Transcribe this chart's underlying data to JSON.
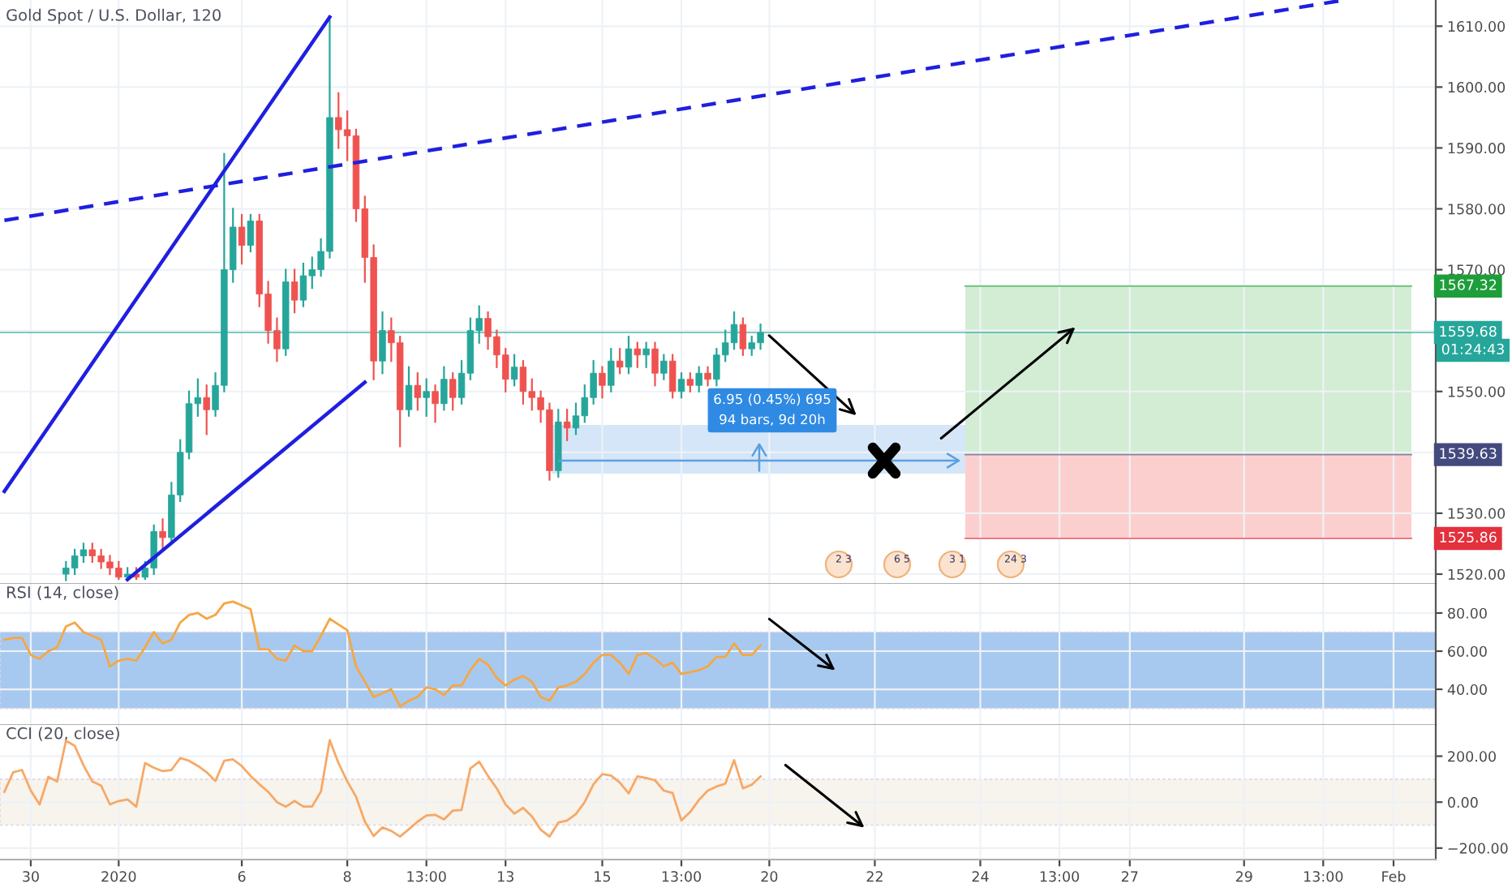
{
  "chart_data": [
    {
      "type": "candlestick",
      "title": "Gold Spot / U.S. Dollar, 120",
      "categories": [
        null,
        null,
        null,
        null,
        null,
        null,
        null,
        null,
        null,
        null,
        null,
        null,
        null,
        null,
        null,
        null,
        null,
        null,
        null,
        null,
        null,
        null,
        null,
        null,
        null,
        null,
        null,
        null,
        null,
        null,
        null,
        null,
        null,
        null,
        null,
        null,
        null,
        null,
        null,
        null,
        null,
        null,
        null,
        null,
        null,
        null,
        null,
        null,
        null,
        null,
        null,
        null,
        null,
        null,
        null,
        null,
        null,
        null,
        null,
        null,
        null,
        null,
        null,
        null,
        null,
        null,
        null,
        null,
        null,
        null,
        null,
        null,
        null,
        null,
        null,
        null,
        null,
        null,
        null,
        null,
        null,
        null,
        null,
        null,
        null,
        null,
        null,
        null,
        null,
        null,
        null,
        null,
        null,
        null,
        null,
        null,
        null,
        null,
        null,
        null,
        null,
        null,
        null,
        null,
        null,
        null,
        null,
        null,
        null,
        null,
        null,
        null,
        null,
        null,
        null,
        null,
        null,
        null,
        null,
        null,
        null,
        null,
        null,
        null,
        null,
        null,
        null,
        null,
        null,
        null,
        null,
        null,
        null,
        null,
        null,
        null,
        null,
        null,
        null,
        null,
        null,
        null,
        null,
        null,
        null,
        null,
        null,
        null,
        null,
        null,
        null,
        null,
        null,
        null,
        null,
        null,
        null,
        null,
        null,
        null,
        null,
        null,
        null,
        null
      ],
      "ohlc": [
        null,
        null,
        null,
        null,
        null,
        null,
        null,
        [
          1520,
          1522,
          1519,
          1521
        ],
        [
          1521,
          1524,
          1520,
          1523
        ],
        [
          1523,
          1525,
          1522,
          1524
        ],
        [
          1524,
          1525,
          1522,
          1523
        ],
        [
          1523,
          1524,
          1521,
          1522
        ],
        [
          1522,
          1523,
          1520,
          1521
        ],
        [
          1521,
          1522,
          1519.2,
          1519.5
        ],
        [
          1519.5,
          1521,
          1519.2,
          1520
        ],
        [
          1520,
          1521,
          1519.2,
          1519.5
        ],
        [
          1519.5,
          1522,
          1519.2,
          1521
        ],
        [
          1521,
          1528,
          1520,
          1527
        ],
        [
          1527,
          1529,
          1524,
          1526
        ],
        [
          1526,
          1535,
          1525,
          1533
        ],
        [
          1533,
          1542,
          1532,
          1540
        ],
        [
          1540,
          1550,
          1539,
          1548
        ],
        [
          1548,
          1552,
          1546,
          1549
        ],
        [
          1549,
          1551,
          1543,
          1547
        ],
        [
          1547,
          1553,
          1546,
          1551
        ],
        [
          1551,
          1589,
          1550,
          1570
        ],
        [
          1570,
          1580,
          1568,
          1577
        ],
        [
          1577,
          1579,
          1571,
          1574
        ],
        [
          1574,
          1579,
          1573,
          1578
        ],
        [
          1578,
          1579,
          1564,
          1566
        ],
        [
          1566,
          1568,
          1558,
          1560
        ],
        [
          1560,
          1562,
          1555,
          1557
        ],
        [
          1557,
          1570,
          1556,
          1568
        ],
        [
          1568,
          1570,
          1563,
          1565
        ],
        [
          1565,
          1571,
          1564,
          1569
        ],
        [
          1569,
          1572,
          1567,
          1570
        ],
        [
          1570,
          1575,
          1569,
          1573
        ],
        [
          1573,
          1611,
          1572,
          1595
        ],
        [
          1595,
          1599,
          1590,
          1593
        ],
        [
          1593,
          1596,
          1588,
          1592
        ],
        [
          1592,
          1593,
          1578,
          1580
        ],
        [
          1580,
          1582,
          1568,
          1572
        ],
        [
          1572,
          1574,
          1552,
          1555
        ],
        [
          1555,
          1563,
          1553,
          1560
        ],
        [
          1560,
          1562,
          1555,
          1558
        ],
        [
          1558,
          1559,
          1541,
          1547
        ],
        [
          1547,
          1554,
          1546,
          1551
        ],
        [
          1551,
          1553,
          1547,
          1549
        ],
        [
          1549,
          1552,
          1546,
          1550
        ],
        [
          1550,
          1551,
          1545,
          1548
        ],
        [
          1548,
          1554,
          1547,
          1552
        ],
        [
          1552,
          1553,
          1547,
          1549
        ],
        [
          1549,
          1555,
          1548,
          1553
        ],
        [
          1553,
          1562,
          1552,
          1560
        ],
        [
          1560,
          1564,
          1558,
          1562
        ],
        [
          1562,
          1563,
          1557,
          1559
        ],
        [
          1559,
          1560,
          1554,
          1556
        ],
        [
          1556,
          1557,
          1550,
          1552
        ],
        [
          1552,
          1556,
          1551,
          1554
        ],
        [
          1554,
          1555,
          1548,
          1550
        ],
        [
          1550,
          1552,
          1547,
          1549
        ],
        [
          1549,
          1550,
          1545,
          1547
        ],
        [
          1547,
          1548,
          1535.5,
          1537
        ],
        [
          1537,
          1547,
          1536,
          1545
        ],
        [
          1545,
          1547,
          1542,
          1544
        ],
        [
          1544,
          1548,
          1543,
          1546
        ],
        [
          1546,
          1551,
          1545,
          1549
        ],
        [
          1549,
          1555,
          1548,
          1553
        ],
        [
          1553,
          1554,
          1549,
          1551
        ],
        [
          1551,
          1557,
          1550,
          1555
        ],
        [
          1555,
          1557,
          1553,
          1554
        ],
        [
          1554,
          1559,
          1553,
          1557
        ],
        [
          1557,
          1558,
          1554,
          1556
        ],
        [
          1556,
          1558,
          1554,
          1557
        ],
        [
          1557,
          1558,
          1551,
          1553
        ],
        [
          1553,
          1556,
          1552,
          1555
        ],
        [
          1555,
          1556,
          1549,
          1550
        ],
        [
          1550,
          1553,
          1549,
          1552
        ],
        [
          1552,
          1553,
          1550,
          1551
        ],
        [
          1551,
          1554,
          1550,
          1553
        ],
        [
          1553,
          1554,
          1551,
          1552
        ],
        [
          1552,
          1557,
          1551,
          1556
        ],
        [
          1556,
          1560,
          1555,
          1558
        ],
        [
          1558,
          1563,
          1557,
          1561
        ],
        [
          1561,
          1562,
          1556,
          1557
        ],
        [
          1557,
          1559,
          1556,
          1558
        ],
        [
          1558,
          1561,
          1557,
          1559.68
        ],
        null,
        null,
        null,
        null,
        null,
        null,
        null,
        null,
        null,
        null,
        null,
        null,
        null,
        null,
        null,
        null,
        null,
        null,
        null,
        null,
        null,
        null,
        null,
        null,
        null,
        null,
        null,
        null,
        null,
        null,
        null,
        null,
        null,
        null,
        null,
        null,
        null,
        null,
        null,
        null,
        null,
        null,
        null,
        null,
        null,
        null,
        null,
        null,
        null,
        null,
        null,
        null,
        null,
        null,
        null,
        null,
        null,
        null,
        null,
        null,
        null,
        null,
        null,
        null,
        null,
        null,
        null,
        null,
        null,
        null,
        null,
        null,
        null,
        null,
        null,
        null,
        null
      ],
      "series": [
        {
          "type": "line",
          "color": "#1f1fe0",
          "line_style": "solid",
          "values": [
            1533.6,
            null,
            null,
            null,
            null,
            null,
            null,
            null,
            null,
            null,
            null,
            null,
            null,
            null,
            null,
            null,
            null,
            null,
            null,
            null,
            null,
            null,
            null,
            null,
            null,
            null,
            null,
            null,
            null,
            null,
            null,
            null,
            null,
            null,
            null,
            null,
            null,
            1611.5,
            null,
            null,
            null,
            null,
            null,
            null,
            null,
            null,
            null,
            null,
            null,
            null,
            null,
            null,
            null,
            null,
            null,
            null,
            null,
            null,
            null,
            null,
            null,
            null,
            null,
            null,
            null,
            null,
            null,
            null,
            null,
            null,
            null,
            null,
            null,
            null,
            null,
            null,
            null,
            null,
            null,
            null,
            null,
            null,
            null,
            null,
            null,
            null,
            null,
            null,
            null,
            null,
            null,
            null,
            null,
            null,
            null,
            null,
            null,
            null,
            null,
            null,
            null,
            null,
            null,
            null,
            null,
            null,
            null,
            null,
            null,
            null,
            null,
            null,
            null,
            null,
            null,
            null,
            null,
            null,
            null,
            null,
            null,
            null,
            null,
            null,
            null,
            null,
            null,
            null,
            null,
            null,
            null,
            null,
            null,
            null,
            null,
            null,
            null,
            null,
            null,
            null,
            null,
            null,
            null,
            null,
            null,
            null,
            null,
            null,
            null,
            null,
            null,
            null,
            null,
            null,
            null,
            null,
            null,
            null,
            null,
            null,
            null,
            null,
            null,
            null
          ]
        },
        {
          "type": "line",
          "color": "#1f1fe0",
          "line_style": "solid",
          "values": [
            null,
            null,
            null,
            null,
            null,
            null,
            null,
            null,
            null,
            null,
            null,
            null,
            null,
            null,
            1519.1,
            null,
            null,
            null,
            null,
            null,
            null,
            null,
            null,
            null,
            null,
            null,
            null,
            null,
            null,
            null,
            null,
            null,
            null,
            null,
            null,
            null,
            null,
            null,
            null,
            null,
            null,
            1551.5,
            null,
            null,
            null,
            null,
            null,
            null,
            null,
            null,
            null,
            null,
            null,
            null,
            null,
            null,
            null,
            null,
            null,
            null,
            null,
            null,
            null,
            null,
            null,
            null,
            null,
            null,
            null,
            null,
            null,
            null,
            null,
            null,
            null,
            null,
            null,
            null,
            null,
            null,
            null,
            null,
            null,
            null,
            null,
            null,
            null,
            null,
            null,
            null,
            null,
            null,
            null,
            null,
            null,
            null,
            null,
            null,
            null,
            null,
            null,
            null,
            null,
            null,
            null,
            null,
            null,
            null,
            null,
            null,
            null,
            null,
            null,
            null,
            null,
            null,
            null,
            null,
            null,
            null,
            null,
            null,
            null,
            null,
            null,
            null,
            null,
            null,
            null,
            null,
            null,
            null,
            null,
            null,
            null,
            null,
            null,
            null,
            null,
            null,
            null,
            null,
            null,
            null,
            null,
            null,
            null,
            null,
            null,
            null,
            null,
            null,
            null,
            null,
            null,
            null,
            null,
            null,
            null,
            null,
            null,
            null,
            null,
            null
          ]
        },
        {
          "type": "line",
          "color": "#1f1fe0",
          "line_style": "dashed",
          "values": [
            1578.1,
            null,
            null,
            null,
            null,
            null,
            null,
            null,
            null,
            null,
            null,
            null,
            null,
            null,
            null,
            null,
            null,
            null,
            null,
            null,
            null,
            null,
            null,
            null,
            null,
            null,
            null,
            null,
            null,
            null,
            null,
            null,
            null,
            null,
            null,
            null,
            null,
            null,
            null,
            null,
            null,
            null,
            null,
            null,
            null,
            null,
            null,
            null,
            null,
            null,
            null,
            null,
            null,
            null,
            null,
            null,
            null,
            null,
            null,
            null,
            null,
            null,
            null,
            null,
            null,
            null,
            null,
            null,
            null,
            null,
            null,
            null,
            null,
            null,
            null,
            null,
            null,
            null,
            null,
            null,
            null,
            null,
            null,
            null,
            null,
            null,
            null,
            null,
            null,
            null,
            null,
            null,
            null,
            null,
            null,
            null,
            null,
            null,
            null,
            null,
            null,
            null,
            null,
            null,
            null,
            null,
            null,
            null,
            null,
            null,
            null,
            null,
            null,
            null,
            null,
            null,
            null,
            null,
            null,
            null,
            null,
            null,
            null,
            null,
            null,
            null,
            null,
            null,
            null,
            null,
            null,
            null,
            null,
            null,
            null,
            null,
            null,
            null,
            null,
            null,
            null,
            null,
            null,
            null,
            null,
            null,
            null,
            null,
            null,
            null,
            null,
            null,
            1614.2,
            null,
            null,
            null,
            null,
            null,
            null,
            null,
            null,
            null,
            null,
            null
          ]
        }
      ],
      "ylim": [
        1518.4,
        1614.3
      ],
      "yticks": [
        {
          "value": 1520,
          "label": "1520.00"
        },
        {
          "value": 1530,
          "label": "1530.00"
        },
        {
          "value": 1540,
          "label": null
        },
        {
          "value": 1550,
          "label": "1550.00"
        },
        {
          "value": 1560,
          "label": null
        },
        {
          "value": 1570,
          "label": "1570.00"
        },
        {
          "value": 1580,
          "label": "1580.00"
        },
        {
          "value": 1590,
          "label": "1590.00"
        },
        {
          "value": 1600,
          "label": "1600.00"
        },
        {
          "value": 1610,
          "label": "1610.00"
        }
      ],
      "bands": [
        {
          "axis": "y",
          "from": 1536.5,
          "to": 1544.5,
          "color": "#cfe3f7"
        },
        {
          "axis": "y",
          "from": 1539.63,
          "to": 1567.32,
          "color": "#cdebcf"
        },
        {
          "axis": "y",
          "from": 1525.86,
          "to": 1539.63,
          "color": "#fccaca"
        }
      ],
      "ref_lines": [
        {
          "axis": "y",
          "value": 1567.32,
          "label": "1567.32",
          "color": "#1e9e3a"
        },
        {
          "axis": "y",
          "value": 1559.68,
          "label": "1559.68",
          "color": "#26a69a"
        },
        {
          "axis": "y",
          "value": 1539.63,
          "label": "1539.63",
          "color": "#434a7e"
        },
        {
          "axis": "y",
          "value": 1525.86,
          "label": "1525.86",
          "color": "#e3303d"
        }
      ],
      "annotations": [
        "6.95 (0.45%) 695\n94 bars, 9d 20h",
        "01:24:43",
        "2 3",
        "6 5",
        "3 1",
        "24 3"
      ],
      "tick_labels": "y",
      "grid": true
    },
    {
      "type": "line",
      "title": "RSI (14, close)",
      "categories": [
        null,
        null,
        null,
        null,
        null,
        null,
        null,
        null,
        null,
        null,
        null,
        null,
        null,
        null,
        null,
        null,
        null,
        null,
        null,
        null,
        null,
        null,
        null,
        null,
        null,
        null,
        null,
        null,
        null,
        null,
        null,
        null,
        null,
        null,
        null,
        null,
        null,
        null,
        null,
        null,
        null,
        null,
        null,
        null,
        null,
        null,
        null,
        null,
        null,
        null,
        null,
        null,
        null,
        null,
        null,
        null,
        null,
        null,
        null,
        null,
        null,
        null,
        null,
        null,
        null,
        null,
        null,
        null,
        null,
        null,
        null,
        null,
        null,
        null,
        null,
        null,
        null,
        null,
        null,
        null,
        null,
        null,
        null,
        null,
        null,
        null,
        null,
        null,
        null,
        null,
        null,
        null,
        null,
        null,
        null,
        null,
        null,
        null,
        null,
        null,
        null,
        null,
        null,
        null,
        null,
        null,
        null,
        null,
        null,
        null,
        null,
        null,
        null,
        null,
        null,
        null,
        null,
        null,
        null,
        null,
        null,
        null,
        null,
        null,
        null,
        null,
        null,
        null,
        null,
        null,
        null,
        null,
        null,
        null,
        null,
        null,
        null,
        null,
        null,
        null,
        null,
        null,
        null,
        null,
        null,
        null,
        null,
        null,
        null,
        null,
        null,
        null,
        null,
        null,
        null,
        null,
        null,
        null,
        null,
        null,
        null,
        null,
        null,
        null
      ],
      "series": [
        {
          "color": "#f5a742",
          "values": [
            66,
            67,
            67,
            58,
            56,
            60,
            62,
            73,
            75,
            70,
            68,
            66,
            52,
            55,
            56,
            55,
            62,
            70,
            64,
            66,
            75,
            79,
            80,
            77,
            79,
            85,
            86,
            84,
            82,
            61,
            61,
            56,
            55,
            63,
            60,
            60,
            68,
            77,
            74,
            71,
            52,
            44,
            36,
            38,
            40,
            31,
            34,
            36,
            41,
            40,
            37,
            42,
            42,
            50,
            56,
            53,
            46,
            42,
            45,
            47,
            44,
            36,
            34,
            41,
            42,
            44,
            48,
            54,
            58,
            58,
            54,
            48,
            58,
            59,
            56,
            52,
            54,
            48,
            49,
            50,
            52,
            57,
            57,
            64,
            58,
            58,
            63,
            null,
            null,
            null,
            null,
            null,
            null,
            null,
            null,
            null,
            null,
            null,
            null,
            null,
            null,
            null,
            null,
            null,
            null,
            null,
            null,
            null,
            null,
            null,
            null,
            null,
            null,
            null,
            null,
            null,
            null,
            null,
            null,
            null,
            null,
            null,
            null,
            null,
            null,
            null,
            null,
            null,
            null,
            null,
            null,
            null,
            null,
            null,
            null,
            null,
            null,
            null,
            null,
            null,
            null,
            null,
            null,
            null,
            null,
            null,
            null,
            null,
            null,
            null,
            null,
            null,
            null,
            null,
            null,
            null,
            null,
            null,
            null,
            null,
            null,
            null,
            null,
            null
          ]
        }
      ],
      "ylim": [
        21.3,
        95.3
      ],
      "yticks": [
        {
          "value": 40,
          "label": "40.00"
        },
        {
          "value": 60,
          "label": "60.00"
        },
        {
          "value": 80,
          "label": "80.00"
        }
      ],
      "bands": [
        {
          "axis": "y",
          "from": 30,
          "to": 70,
          "color": "#6fa6e6"
        }
      ],
      "tick_labels": "y",
      "grid": true
    },
    {
      "type": "line",
      "title": "CCI (20, close)",
      "categories": [
        null,
        null,
        null,
        "30",
        null,
        null,
        null,
        null,
        null,
        null,
        null,
        null,
        null,
        "2020",
        null,
        null,
        null,
        null,
        null,
        null,
        null,
        null,
        null,
        null,
        null,
        null,
        null,
        "6",
        null,
        null,
        null,
        null,
        null,
        null,
        null,
        null,
        null,
        null,
        null,
        "8",
        null,
        null,
        null,
        null,
        null,
        null,
        null,
        null,
        "13:00",
        null,
        null,
        null,
        null,
        null,
        null,
        null,
        null,
        "13",
        null,
        null,
        null,
        null,
        null,
        null,
        null,
        null,
        null,
        null,
        "15",
        null,
        null,
        null,
        null,
        null,
        null,
        null,
        null,
        "13:00",
        null,
        null,
        null,
        null,
        null,
        null,
        null,
        null,
        null,
        "20",
        null,
        null,
        null,
        null,
        null,
        null,
        null,
        null,
        null,
        null,
        null,
        "22",
        null,
        null,
        null,
        null,
        null,
        null,
        null,
        null,
        null,
        null,
        null,
        "24",
        null,
        null,
        null,
        null,
        null,
        null,
        null,
        null,
        "13:00",
        null,
        null,
        null,
        null,
        null,
        null,
        null,
        "27",
        null,
        null,
        null,
        null,
        null,
        null,
        null,
        null,
        null,
        null,
        null,
        null,
        "29",
        null,
        null,
        null,
        null,
        null,
        null,
        null,
        null,
        "13:00",
        null,
        null,
        null,
        null,
        null,
        null,
        null,
        "Feb",
        null,
        null,
        null,
        null,
        null
      ],
      "series": [
        {
          "color": "#f7a866",
          "values": [
            45,
            130,
            140,
            50,
            -10,
            110,
            90,
            267,
            245,
            160,
            90,
            72,
            -10,
            5,
            12,
            -20,
            170,
            150,
            135,
            140,
            192,
            180,
            158,
            130,
            92,
            180,
            186,
            157,
            114,
            78,
            45,
            0,
            -20,
            5,
            -19,
            -19,
            46,
            270,
            170,
            90,
            23,
            -85,
            -148,
            -110,
            -125,
            -150,
            -118,
            -85,
            -58,
            -55,
            -75,
            -37,
            -34,
            147,
            176,
            114,
            60,
            -10,
            -50,
            -25,
            -62,
            -120,
            -150,
            -89,
            -80,
            -52,
            0,
            78,
            122,
            116,
            85,
            38,
            112,
            105,
            95,
            50,
            40,
            -80,
            -43,
            10,
            50,
            68,
            80,
            183,
            60,
            76,
            112,
            null,
            null,
            null,
            null,
            null,
            null,
            null,
            null,
            null,
            null,
            null,
            null,
            null,
            null,
            null,
            null,
            null,
            null,
            null,
            null,
            null,
            null,
            null,
            null,
            null,
            null,
            null,
            null,
            null,
            null,
            null,
            null,
            null,
            null,
            null,
            null,
            null,
            null,
            null,
            null,
            null,
            null,
            null,
            null,
            null,
            null,
            null,
            null,
            null,
            null,
            null,
            null,
            null,
            null,
            null,
            null,
            null,
            null,
            null,
            null,
            null,
            null,
            null,
            null,
            null,
            null,
            null,
            null,
            null,
            null,
            null,
            null,
            null,
            null,
            null,
            null,
            null
          ]
        }
      ],
      "ylim": [
        -250,
        336
      ],
      "yticks": [
        {
          "value": -200,
          "label": "−200.00"
        },
        {
          "value": 0,
          "label": "0.00"
        },
        {
          "value": 200,
          "label": "200.00"
        }
      ],
      "bands": [
        {
          "axis": "y",
          "from": -100,
          "to": 100,
          "color": "#f3ece2"
        }
      ],
      "grid": true
    }
  ]
}
